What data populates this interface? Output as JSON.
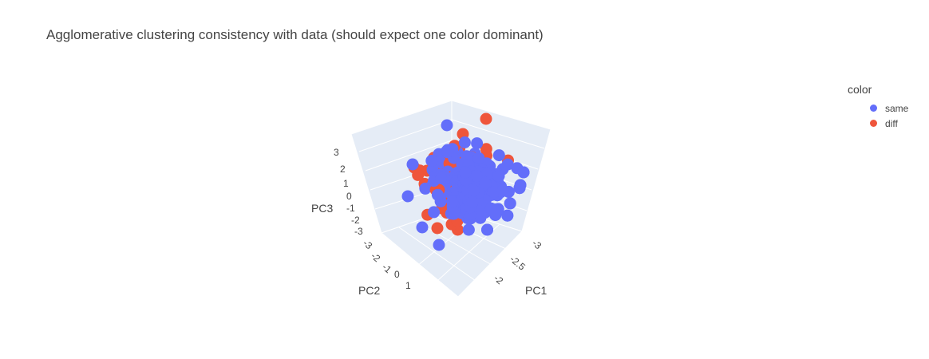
{
  "chart_data": {
    "type": "scatter",
    "title": "Agglomerative clustering consistency with data (should expect one color dominant)",
    "legend_title": "color",
    "legend_placement": "top-right",
    "series": [
      {
        "name": "same",
        "color": "#636efa"
      },
      {
        "name": "diff",
        "color": "#ef553b"
      }
    ],
    "axes": {
      "x": {
        "title": "PC1",
        "ticks": [
          "-3",
          "-2.5",
          "-2"
        ]
      },
      "y": {
        "title": "PC2",
        "ticks": [
          "-3",
          "-2",
          "-1",
          "0",
          "1"
        ]
      },
      "z": {
        "title": "PC3",
        "ticks": [
          "3",
          "2",
          "1",
          "0",
          "-1",
          "-2",
          "-3"
        ]
      }
    },
    "grid": true,
    "scene_background": "#e5ecf6"
  }
}
